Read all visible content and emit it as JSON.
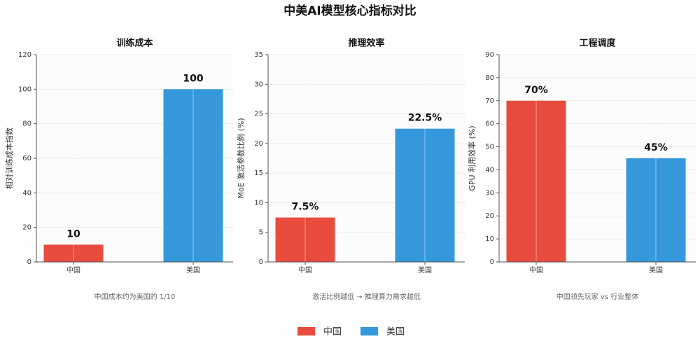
{
  "title": "中美AI模型核心指标对比",
  "legend": [
    {
      "name": "中国",
      "color": "#e74c3c"
    },
    {
      "name": "美国",
      "color": "#3498db"
    }
  ],
  "chart_data": [
    {
      "type": "bar",
      "title": "训练成本",
      "ylabel": "相对训练成本指数",
      "categories": [
        "中国",
        "美国"
      ],
      "values": [
        10,
        100
      ],
      "colors": [
        "#e74c3c",
        "#3498db"
      ],
      "ylim": [
        0,
        120
      ],
      "yticks": [
        0,
        20,
        40,
        60,
        80,
        100,
        120
      ],
      "grid": true,
      "note": "中国成本约为美国的 1/10"
    },
    {
      "type": "bar",
      "title": "推理效率",
      "ylabel": "MoE 激活参数比例 (%)",
      "categories": [
        "中国",
        "美国"
      ],
      "values": [
        7.5,
        22.5
      ],
      "value_labels": [
        "7.5%",
        "22.5%"
      ],
      "colors": [
        "#e74c3c",
        "#3498db"
      ],
      "ylim": [
        0,
        35
      ],
      "yticks": [
        0,
        5,
        10,
        15,
        20,
        25,
        30,
        35
      ],
      "grid": true,
      "note": "激活比例越低 → 推理算力需求越低"
    },
    {
      "type": "bar",
      "title": "工程调度",
      "ylabel": "GPU 利用效率 (%)",
      "categories": [
        "中国",
        "美国"
      ],
      "values": [
        70,
        45
      ],
      "value_labels": [
        "70%",
        "45%"
      ],
      "colors": [
        "#e74c3c",
        "#3498db"
      ],
      "ylim": [
        0,
        90
      ],
      "yticks": [
        0,
        10,
        20,
        30,
        40,
        50,
        60,
        70,
        80,
        90
      ],
      "grid": true,
      "note": "中国领先玩家 vs 行业整体"
    }
  ]
}
